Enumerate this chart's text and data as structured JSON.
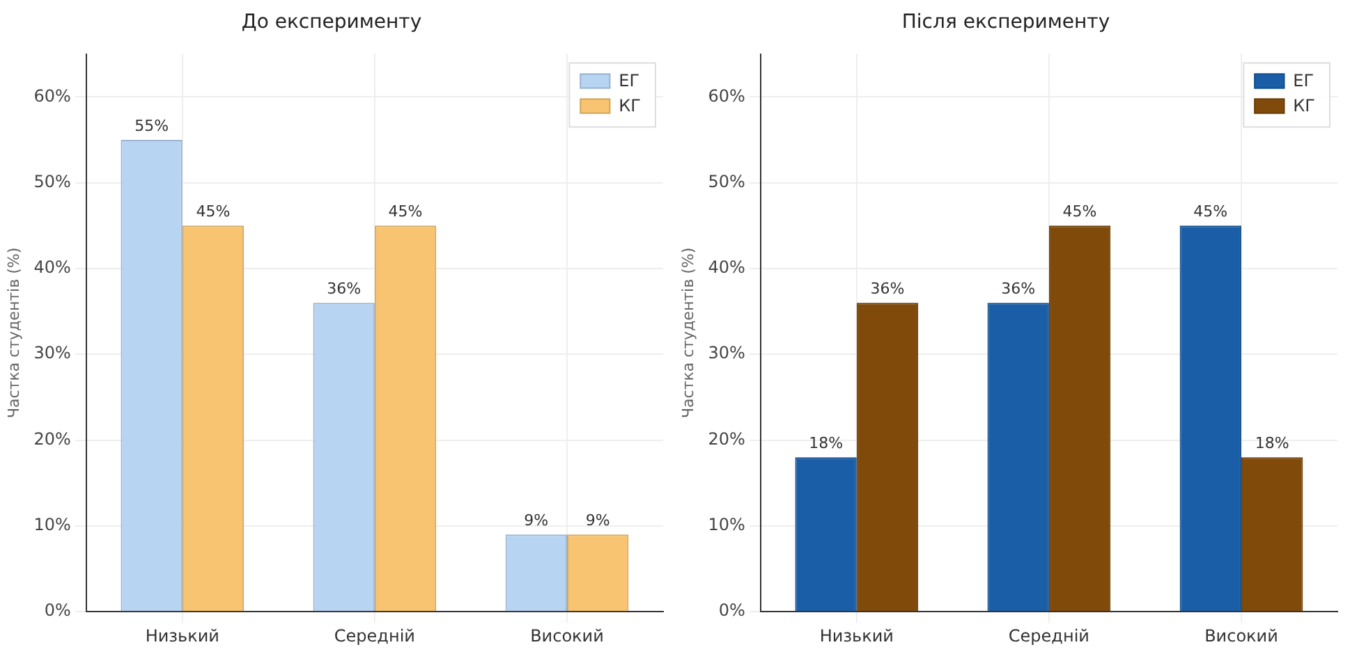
{
  "chart_data": [
    {
      "type": "bar",
      "title": "До експерименту",
      "ylabel": "Частка студентів (%)",
      "categories": [
        "Низький",
        "Середній",
        "Високий"
      ],
      "series": [
        {
          "name": "ЕГ",
          "color": "#b7d4f3",
          "values": [
            55,
            36,
            9
          ],
          "value_labels": [
            "55%",
            "36%",
            "9%"
          ]
        },
        {
          "name": "КГ",
          "color": "#f8c471",
          "values": [
            45,
            45,
            9
          ],
          "value_labels": [
            "45%",
            "45%",
            "9%"
          ]
        }
      ],
      "ylim": [
        0,
        65
      ],
      "yticks": [
        {
          "value": 0,
          "label": "0%"
        },
        {
          "value": 10,
          "label": "10%"
        },
        {
          "value": 20,
          "label": "20%"
        },
        {
          "value": 30,
          "label": "30%"
        },
        {
          "value": 40,
          "label": "40%"
        },
        {
          "value": 50,
          "label": "50%"
        },
        {
          "value": 60,
          "label": "60%"
        }
      ],
      "grid": true,
      "legend": "top right"
    },
    {
      "type": "bar",
      "title": "Після експерименту",
      "ylabel": "Частка студентів (%)",
      "categories": [
        "Низький",
        "Середній",
        "Високий"
      ],
      "series": [
        {
          "name": "ЕГ",
          "color": "#1a5ea8",
          "values": [
            18,
            36,
            45
          ],
          "value_labels": [
            "18%",
            "36%",
            "45%"
          ]
        },
        {
          "name": "КГ",
          "color": "#804a0a",
          "values": [
            36,
            45,
            18
          ],
          "value_labels": [
            "36%",
            "45%",
            "18%"
          ]
        }
      ],
      "ylim": [
        0,
        65
      ],
      "yticks": [
        {
          "value": 0,
          "label": "0%"
        },
        {
          "value": 10,
          "label": "10%"
        },
        {
          "value": 20,
          "label": "20%"
        },
        {
          "value": 30,
          "label": "30%"
        },
        {
          "value": 40,
          "label": "40%"
        },
        {
          "value": 50,
          "label": "50%"
        },
        {
          "value": 60,
          "label": "60%"
        }
      ],
      "grid": true,
      "legend": "top right"
    }
  ]
}
